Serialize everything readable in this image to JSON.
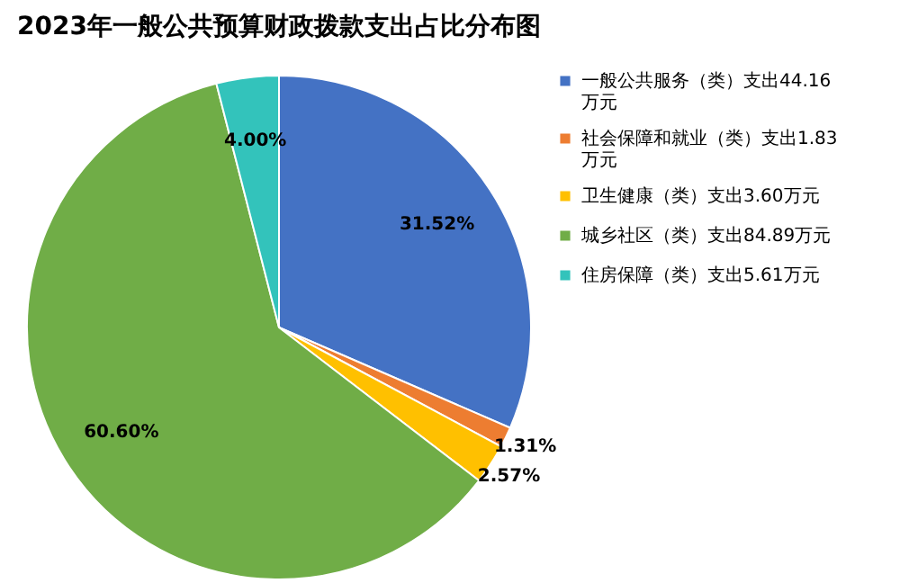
{
  "chart_data": {
    "type": "pie",
    "title": "2023年一般公共预算财政拨款支出占比分布图",
    "categories": [
      "一般公共服务（类）支出44.16万元",
      "社会保障和就业（类）支出1.83万元",
      "卫生健康（类）支出3.60万元",
      "城乡社区（类）支出84.89万元",
      "住房保障（类）支出5.61万元"
    ],
    "values": [
      31.52,
      1.31,
      2.57,
      60.6,
      4.0
    ],
    "value_labels": [
      "31.52%",
      "1.31%",
      "2.57%",
      "60.60%",
      "4.00%"
    ],
    "colors": [
      "#4472c4",
      "#ed7d31",
      "#ffc000",
      "#70ad47",
      "#33c3bb"
    ],
    "legend": "right"
  }
}
